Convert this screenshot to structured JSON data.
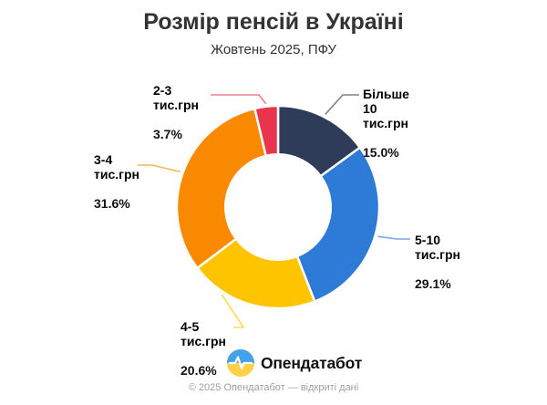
{
  "chart_data": {
    "type": "pie",
    "variant": "donut",
    "title": "Розмір пенсій в Україні",
    "subtitle": "Жовтень 2025, ПФУ",
    "unit": "тис.грн",
    "start_angle_deg": 0,
    "inner_radius_ratio": 0.52,
    "legend_position": "none",
    "slices": [
      {
        "name": "Більше 10 тис.грн",
        "label": "Більше\n10\nтис.грн",
        "value": 15.0,
        "pct": "15.0%",
        "color": "#2e3c59"
      },
      {
        "name": "5-10 тис.грн",
        "label": "5-10\nтис.грн",
        "value": 29.1,
        "pct": "29.1%",
        "color": "#2e7ad7"
      },
      {
        "name": "4-5 тис.грн",
        "label": "4-5\nтис.грн",
        "value": 20.6,
        "pct": "20.6%",
        "color": "#ffc400"
      },
      {
        "name": "3-4 тис.грн",
        "label": "3-4\nтис.грн",
        "value": 31.6,
        "pct": "31.6%",
        "color": "#f98a00"
      },
      {
        "name": "2-3 тис.грн",
        "label": "2-3\nтис.грн",
        "value": 3.7,
        "pct": "3.7%",
        "color": "#e8344c"
      }
    ]
  },
  "branding": {
    "logo_text": "Опендатабот",
    "logo_colors": {
      "top": "#42a3ec",
      "bottom": "#ffd04a",
      "pulse": "#ffffff"
    }
  },
  "footer": {
    "copyright": "© 2025 Опендатабот — відкриті дані"
  }
}
